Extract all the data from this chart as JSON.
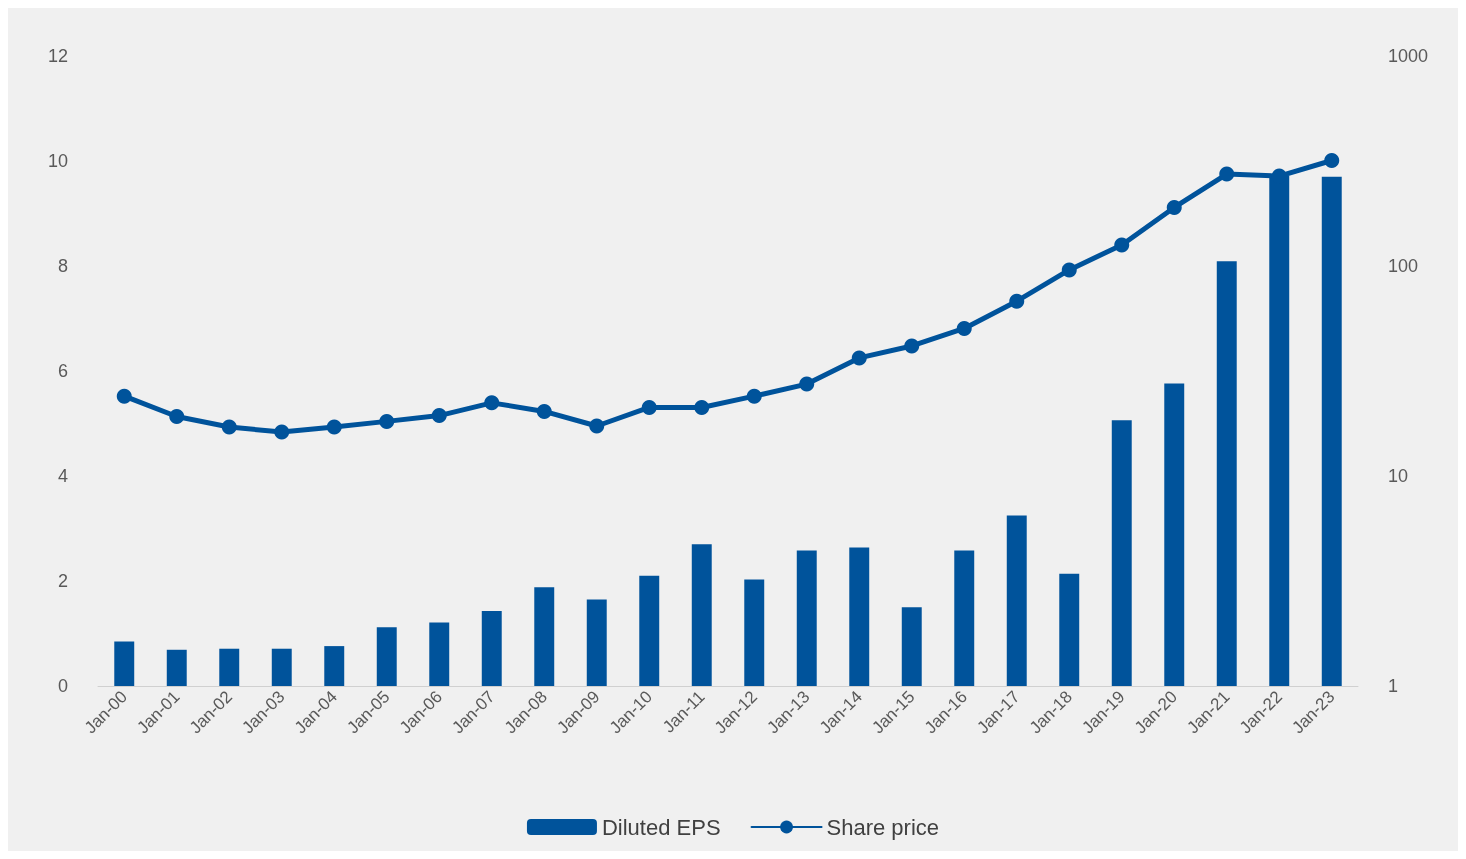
{
  "chart_data": {
    "type": "bar",
    "categories": [
      "Jan-00",
      "Jan-01",
      "Jan-02",
      "Jan-03",
      "Jan-04",
      "Jan-05",
      "Jan-06",
      "Jan-07",
      "Jan-08",
      "Jan-09",
      "Jan-10",
      "Jan-11",
      "Jan-12",
      "Jan-13",
      "Jan-14",
      "Jan-15",
      "Jan-16",
      "Jan-17",
      "Jan-18",
      "Jan-19",
      "Jan-20",
      "Jan-21",
      "Jan-22",
      "Jan-23"
    ],
    "series": [
      {
        "name": "Diluted EPS",
        "color": "#00539b",
        "values": [
          0.85,
          0.69,
          0.71,
          0.71,
          0.76,
          1.12,
          1.21,
          1.43,
          1.88,
          1.65,
          2.1,
          2.7,
          2.03,
          2.58,
          2.64,
          1.5,
          2.58,
          3.25,
          2.14,
          5.06,
          5.76,
          8.09,
          9.72,
          9.7
        ]
      },
      {
        "name": "Share price",
        "type": "line",
        "axis": "y2",
        "color": "#00539b",
        "values": [
          24,
          19.2,
          17.1,
          16.2,
          17.1,
          18.2,
          19.4,
          22.3,
          20.3,
          17.3,
          21.2,
          21.2,
          24,
          27.4,
          36.5,
          41.6,
          50.4,
          68,
          95.8,
          126,
          190,
          274,
          268,
          318
        ]
      }
    ],
    "ylim": [
      0,
      12
    ],
    "yticks": [
      0,
      2,
      4,
      6,
      8,
      10,
      12
    ],
    "y2lim": [
      1,
      1000
    ],
    "y2ticks": [
      1,
      10,
      100,
      {
        "value": 1000,
        "label": "1000"
      }
    ],
    "log": "y2",
    "grid": false,
    "legend": "bottom",
    "marker": "circle",
    "line_style": "solid"
  }
}
